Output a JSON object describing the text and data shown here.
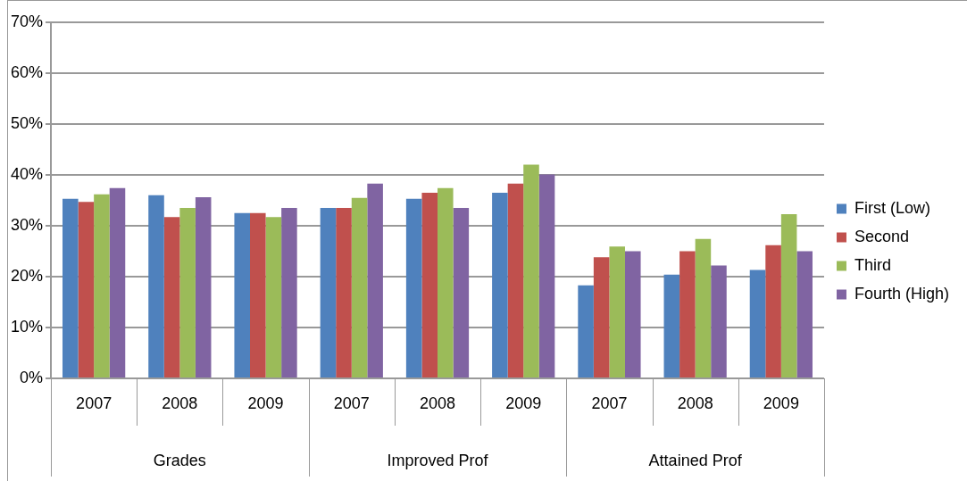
{
  "chart_data": {
    "type": "bar",
    "categories": [
      "2007",
      "2008",
      "2009",
      "2007",
      "2008",
      "2009",
      "2007",
      "2008",
      "2009"
    ],
    "annotations": [
      "Grades",
      "Improved Prof",
      "Attained Prof"
    ],
    "series": [
      {
        "name": "First (Low)",
        "color": "#4f81bd",
        "values": [
          35.3,
          36.0,
          32.5,
          33.5,
          35.3,
          36.5,
          18.3,
          20.4,
          21.3
        ]
      },
      {
        "name": "Second",
        "color": "#c0504d",
        "values": [
          34.7,
          31.7,
          32.5,
          33.5,
          36.5,
          38.3,
          23.8,
          25.0,
          26.2
        ]
      },
      {
        "name": "Third",
        "color": "#9bbb59",
        "values": [
          36.2,
          33.5,
          31.7,
          35.5,
          37.4,
          42.0,
          25.9,
          27.4,
          32.3
        ]
      },
      {
        "name": "Fourth (High)",
        "color": "#8064a2",
        "values": [
          37.4,
          35.6,
          33.5,
          38.3,
          33.5,
          40.1,
          25.0,
          22.2,
          25.0
        ]
      }
    ],
    "ylim": [
      0,
      70
    ],
    "yticks": [
      {
        "value": 0,
        "label": "0%"
      },
      {
        "value": 10,
        "label": "10%"
      },
      {
        "value": 20,
        "label": "20%"
      },
      {
        "value": 30,
        "label": "30%"
      },
      {
        "value": 40,
        "label": "40%"
      },
      {
        "value": 50,
        "label": "50%"
      },
      {
        "value": 60,
        "label": "60%"
      },
      {
        "value": 70,
        "label": "70%"
      }
    ],
    "grid": "y",
    "legend": "right"
  }
}
